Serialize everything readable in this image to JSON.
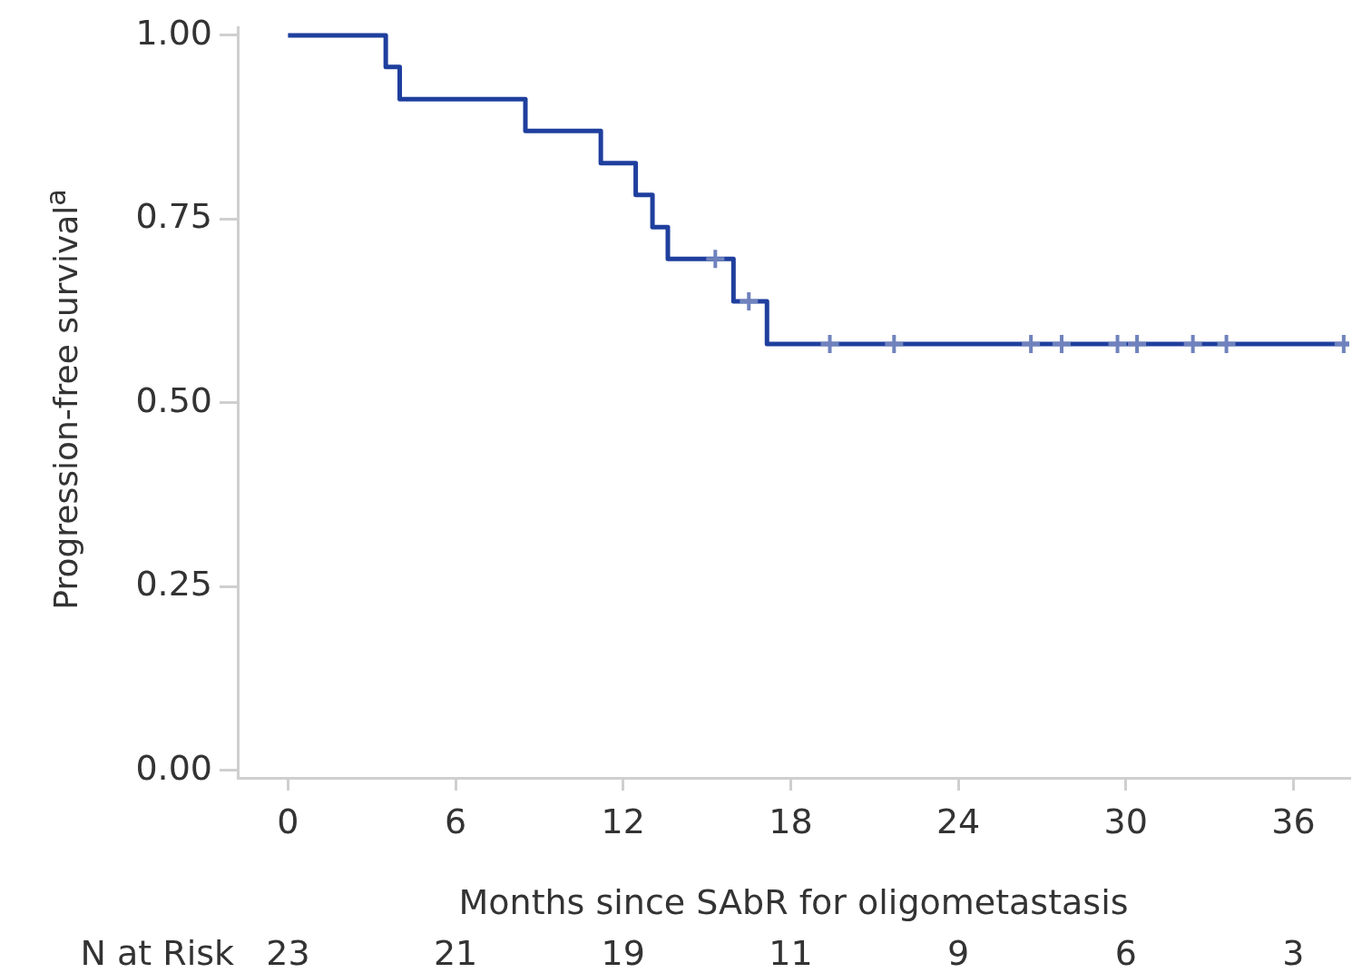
{
  "chart_data": {
    "type": "step",
    "xlabel": "Months since SAbR for oligometastasis",
    "ylabel": "Progression-free survival$^{a}$",
    "xlim": [
      -1.8,
      38
    ],
    "xticks": [
      0,
      6,
      12,
      18,
      24,
      30,
      36
    ],
    "ylim": [
      -0.01,
      1.01
    ],
    "yticks": [
      {
        "value": 0,
        "label": "0.00"
      },
      {
        "value": 0.25,
        "label": "0.25"
      },
      {
        "value": 0.5,
        "label": "0.50"
      },
      {
        "value": 0.75,
        "label": "0.75"
      },
      {
        "value": 1,
        "label": "1.00"
      }
    ],
    "grid": false,
    "legend": false,
    "line_style": "solid",
    "marker": "none",
    "series": [
      {
        "color": "#1f3f9e",
        "x": [
          0,
          3.5,
          4.0,
          8.5,
          11.2,
          12.45,
          13.05,
          13.6,
          15.95,
          17.15,
          38
        ],
        "values": [
          1,
          0.957,
          0.913,
          0.87,
          0.826,
          0.783,
          0.739,
          0.696,
          0.638,
          0.58,
          0.58
        ]
      },
      {
        "type": "scatter",
        "marker": "cross",
        "color": "#6f82bd",
        "x": [
          15.3,
          16.5,
          19.4,
          21.7,
          26.6,
          27.7,
          29.7,
          30.4,
          32.4,
          33.6,
          37.8
        ],
        "values": [
          0.696,
          0.638,
          0.58,
          0.58,
          0.58,
          0.58,
          0.58,
          0.58,
          0.58,
          0.58,
          0.58
        ]
      }
    ],
    "annotations": [
      "N at Risk",
      "23",
      "21",
      "19",
      "11",
      "9",
      "6",
      "3"
    ]
  }
}
